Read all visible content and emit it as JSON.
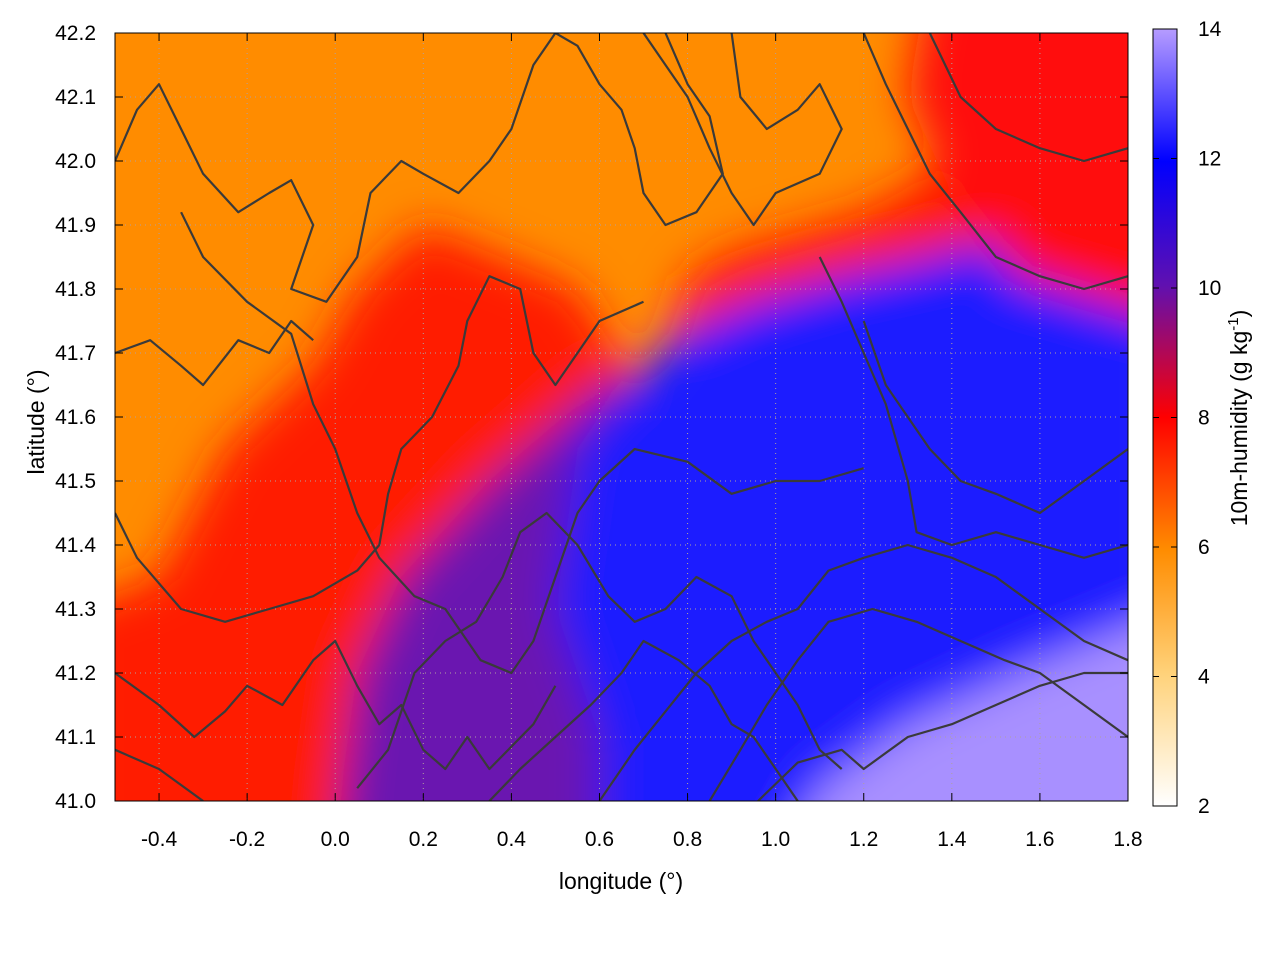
{
  "chart_data": {
    "type": "heatmap",
    "title": "",
    "xlabel": "longitude (°)",
    "ylabel": "latitude (°)",
    "xlim": [
      -0.5,
      1.8
    ],
    "ylim": [
      41.0,
      42.2
    ],
    "x_ticks": [
      "-0.4",
      "-0.2",
      "0.0",
      "0.2",
      "0.4",
      "0.6",
      "0.8",
      "1.0",
      "1.2",
      "1.4",
      "1.6",
      "1.8"
    ],
    "y_ticks": [
      "41.0",
      "41.1",
      "41.2",
      "41.3",
      "41.4",
      "41.5",
      "41.6",
      "41.7",
      "41.8",
      "41.9",
      "42.0",
      "42.1",
      "42.2"
    ],
    "grid": true,
    "colorbar": {
      "label_main": "10m-humidity (g kg",
      "label_sup": "-1",
      "label_end": ")",
      "range": [
        2,
        14
      ],
      "ticks": [
        "2",
        "4",
        "6",
        "8",
        "10",
        "12",
        "14"
      ],
      "colors": [
        "#ffffff",
        "#ffa500",
        "#ff0000",
        "#5a10b8",
        "#0000ff",
        "#b090ff"
      ]
    },
    "contour_color": "#3a3a3a",
    "field_regions": [
      {
        "name": "northwest",
        "value": 6.3,
        "color": "#ff8c00"
      },
      {
        "name": "west-central",
        "value": 7.8,
        "color": "#ff1a00"
      },
      {
        "name": "central",
        "value": 9.5,
        "color": "#6a14b0"
      },
      {
        "name": "east",
        "value": 11.0,
        "color": "#1a1aff"
      },
      {
        "name": "southeast",
        "value": 12.8,
        "color": "#a890ff"
      },
      {
        "name": "northeast",
        "value": 8.8,
        "color": "#ff1010"
      }
    ]
  }
}
